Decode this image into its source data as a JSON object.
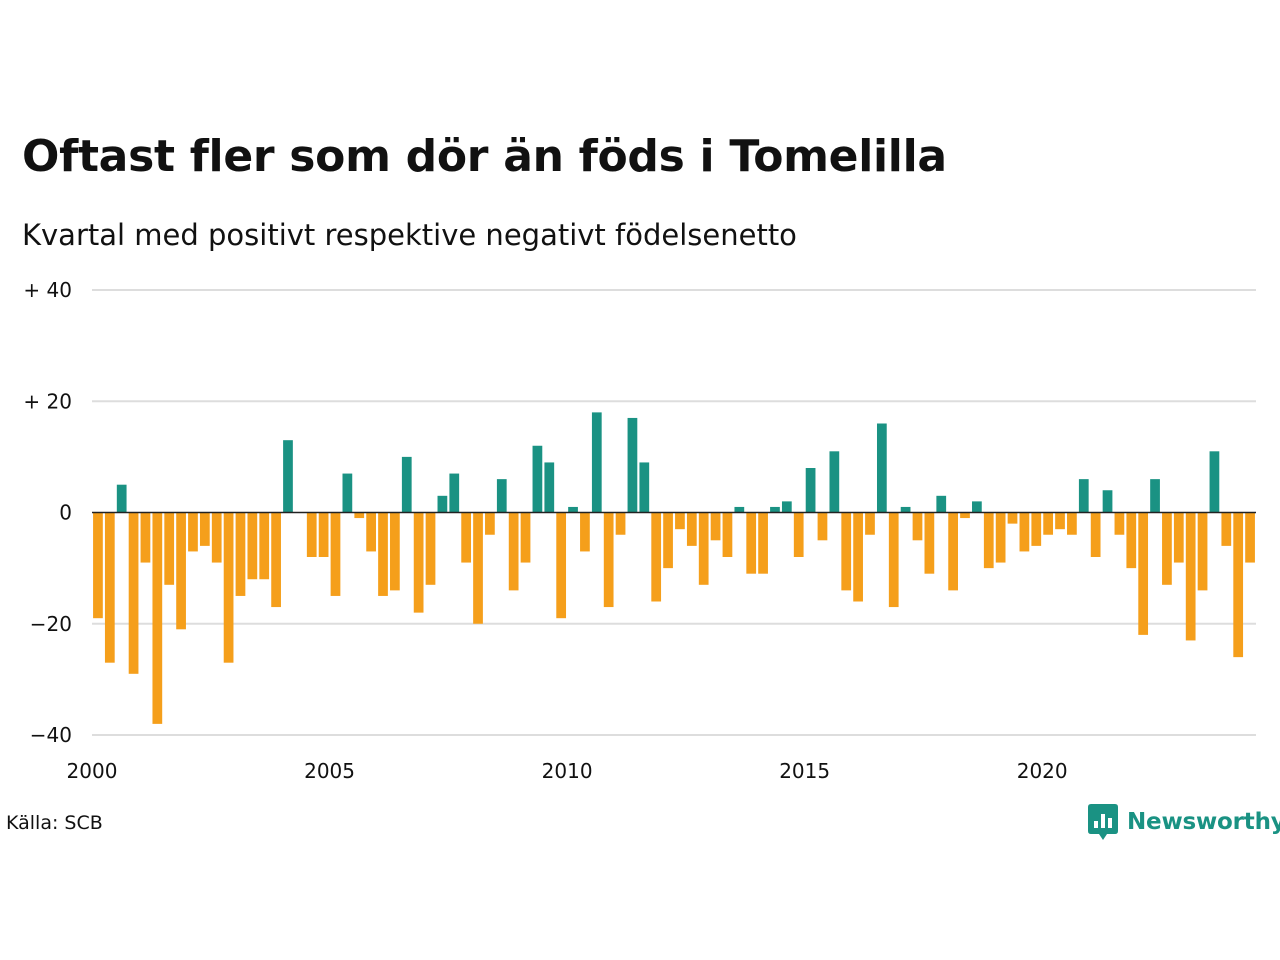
{
  "title": "Oftast fler som dör än föds i Tomelilla",
  "subtitle": "Kvartal med positivt respektive negativt födelsenetto",
  "source": "Källa: SCB",
  "brand": {
    "name": "Newsworthy",
    "icon": "newsworthy-logo-icon",
    "color": "#1a9283"
  },
  "chart_data": {
    "type": "bar",
    "title": "Oftast fler som dör än föds i Tomelilla",
    "subtitle": "Kvartal med positivt respektive negativt födelsenetto",
    "xlabel": "",
    "ylabel": "",
    "start_year": 2000,
    "periods_per_year": 4,
    "ylim": [
      -40,
      40
    ],
    "yticks": [
      {
        "value": 40,
        "label": "+ 40"
      },
      {
        "value": 20,
        "label": "+ 20"
      },
      {
        "value": 0,
        "label": "0"
      },
      {
        "value": -20,
        "label": "−20"
      },
      {
        "value": -40,
        "label": "−40"
      }
    ],
    "xticks": [
      "2000",
      "2005",
      "2010",
      "2015",
      "2020"
    ],
    "grid": true,
    "legend": "none",
    "colors": {
      "positive": "#1a9283",
      "negative": "#f59f1b",
      "grid": "#dddddd"
    },
    "values": [
      -19,
      -27,
      5,
      -29,
      -9,
      -38,
      -13,
      -21,
      -7,
      -6,
      -9,
      -27,
      -15,
      -12,
      -12,
      -17,
      13,
      0,
      -8,
      -8,
      -15,
      7,
      -1,
      -7,
      -15,
      -14,
      10,
      -18,
      -13,
      3,
      7,
      -9,
      -20,
      -4,
      6,
      -14,
      -9,
      12,
      9,
      -19,
      1,
      -7,
      18,
      -17,
      -4,
      17,
      9,
      -16,
      -10,
      -3,
      -6,
      -13,
      -5,
      -8,
      1,
      -11,
      -11,
      1,
      2,
      -8,
      8,
      -5,
      11,
      -14,
      -16,
      -4,
      16,
      -17,
      1,
      -5,
      -11,
      3,
      -14,
      -1,
      2,
      -10,
      -9,
      -2,
      -7,
      -6,
      -4,
      -3,
      -4,
      6,
      -8,
      4,
      -4,
      -10,
      -22,
      6,
      -13,
      -9,
      -23,
      -14,
      11,
      -6,
      -26,
      -9
    ]
  }
}
